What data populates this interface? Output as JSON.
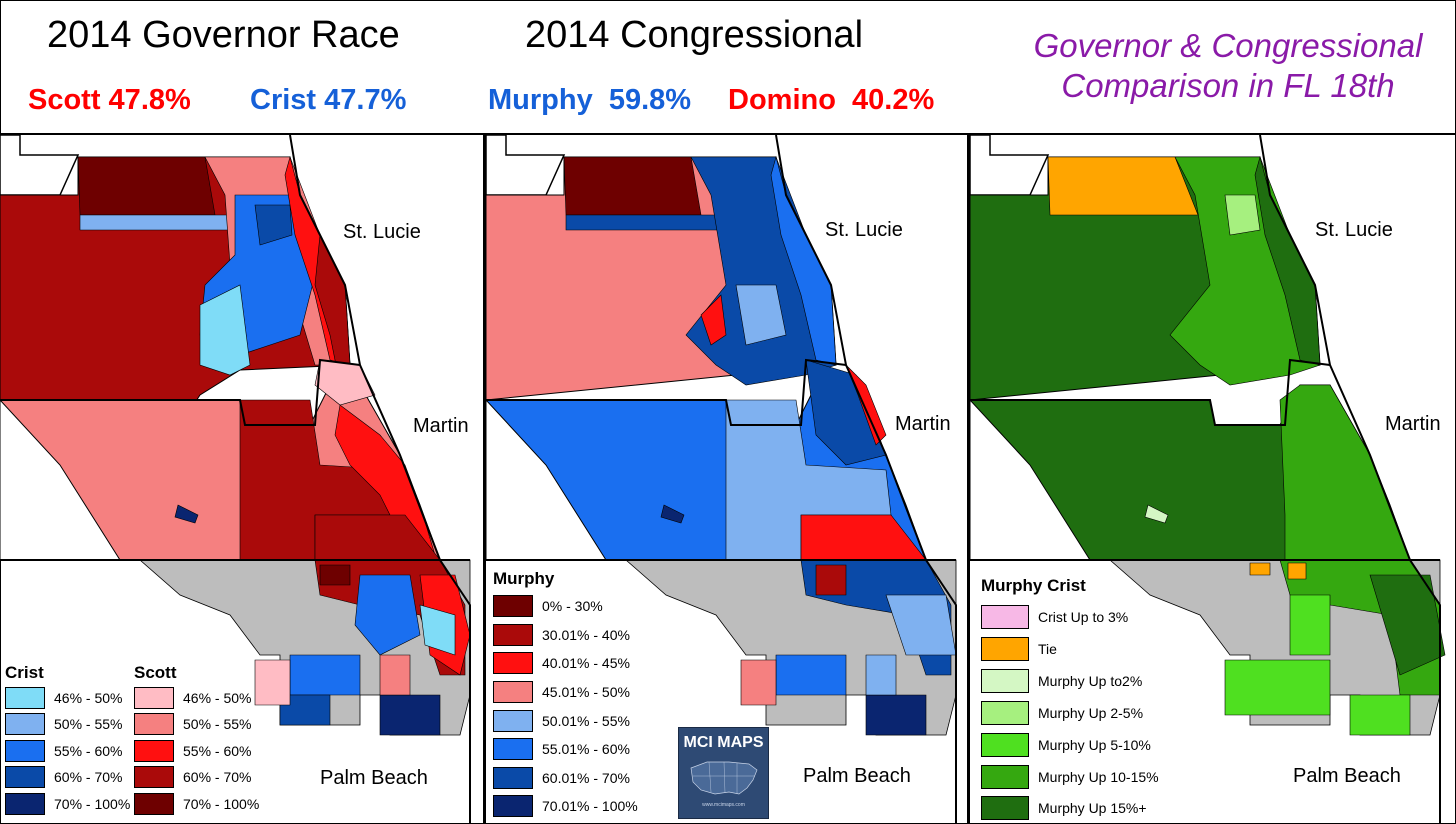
{
  "header": {
    "governor_title": "2014 Governor Race",
    "scott_result": "Scott 47.8%",
    "crist_result": "Crist 47.7%",
    "congress_title": "2014 Congressional",
    "murphy_result": "Murphy  59.8%",
    "domino_result": "Domino  40.2%",
    "comparison_title_line1": "Governor & Congressional",
    "comparison_title_line2": "Comparison in FL 18th"
  },
  "counties": {
    "st_lucie": "St. Lucie",
    "martin": "Martin",
    "palm_beach": "Palm Beach"
  },
  "legend_governor": {
    "crist_title": "Crist",
    "scott_title": "Scott",
    "crist_items": [
      {
        "label": "46% - 50%",
        "color": "#7fdcf7"
      },
      {
        "label": "50% - 55%",
        "color": "#7fb1f0"
      },
      {
        "label": "55% - 60%",
        "color": "#1a6ff0"
      },
      {
        "label": "60% - 70%",
        "color": "#0a4aa8"
      },
      {
        "label": "70% - 100%",
        "color": "#0a2570"
      }
    ],
    "scott_items": [
      {
        "label": "46% - 50%",
        "color": "#ffbcc4"
      },
      {
        "label": "50% - 55%",
        "color": "#f58080"
      },
      {
        "label": "55% - 60%",
        "color": "#ff1010"
      },
      {
        "label": "60% - 70%",
        "color": "#aa0a0a"
      },
      {
        "label": "70% - 100%",
        "color": "#6e0000"
      }
    ]
  },
  "legend_congress": {
    "title": "Murphy",
    "items": [
      {
        "label": "0% - 30%",
        "color": "#6e0000"
      },
      {
        "label": "30.01% - 40%",
        "color": "#aa0a0a"
      },
      {
        "label": "40.01% - 45%",
        "color": "#ff1010"
      },
      {
        "label": "45.01% - 50%",
        "color": "#f58080"
      },
      {
        "label": "50.01% - 55%",
        "color": "#7fb1f0"
      },
      {
        "label": "55.01% - 60%",
        "color": "#1a6ff0"
      },
      {
        "label": "60.01% - 70%",
        "color": "#0a4aa8"
      },
      {
        "label": "70.01% - 100%",
        "color": "#0a2570"
      }
    ]
  },
  "legend_comparison": {
    "title": "Murphy Crist",
    "items": [
      {
        "label": "Crist Up to 3%",
        "color": "#f7b8e6"
      },
      {
        "label": "Tie",
        "color": "#ffa500"
      },
      {
        "label": "Murphy Up to2%",
        "color": "#d4f7c4"
      },
      {
        "label": "Murphy Up 2-5%",
        "color": "#a6f07f"
      },
      {
        "label": "Murphy Up 5-10%",
        "color": "#4fe020"
      },
      {
        "label": "Murphy Up 10-15%",
        "color": "#35a810"
      },
      {
        "label": "Murphy Up 15%+",
        "color": "#1f6e10"
      }
    ]
  },
  "badge": {
    "title": "MCI MAPS",
    "url": "www.mcimaps.com"
  },
  "colors": {
    "palm_beach_gray": "#bdbdbd",
    "title_purple": "#8a1aa8"
  }
}
